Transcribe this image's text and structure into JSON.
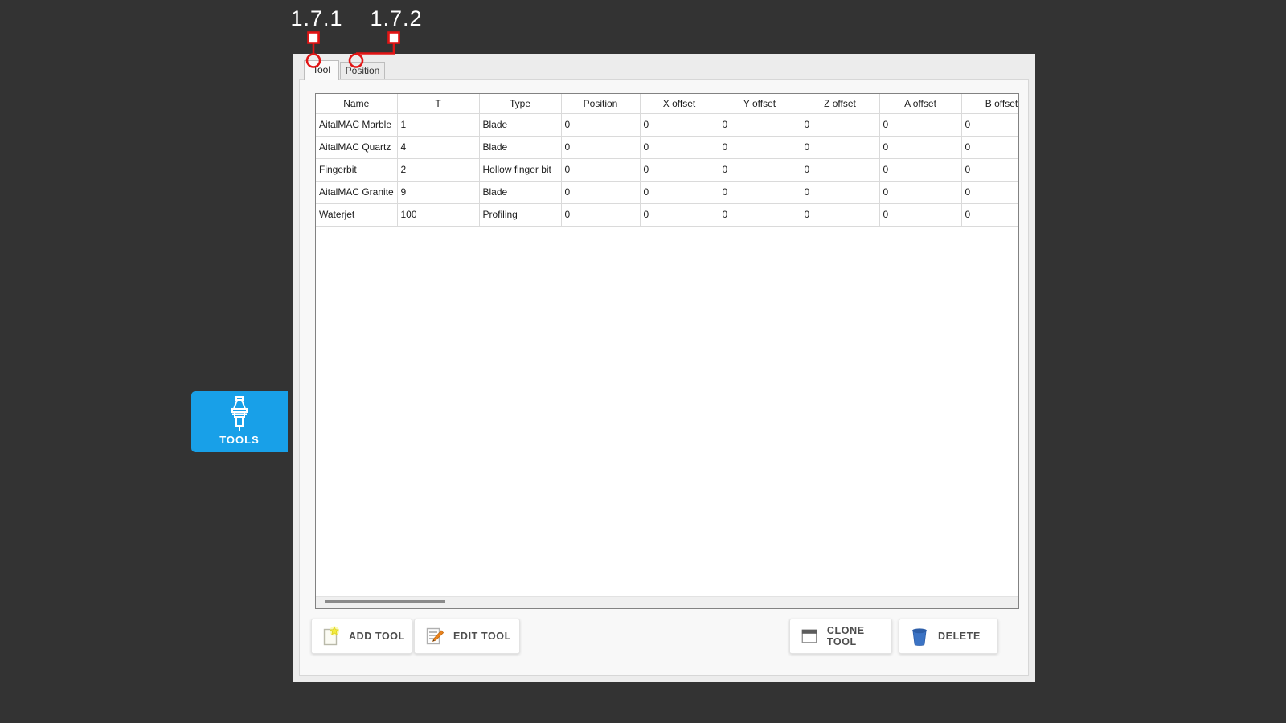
{
  "annotations": {
    "callout1": "1.7.1",
    "callout2": "1.7.2"
  },
  "tabs": [
    {
      "label": "Tool",
      "active": true
    },
    {
      "label": "Position",
      "active": false
    }
  ],
  "table": {
    "columns": [
      "Name",
      "T",
      "Type",
      "Position",
      "X offset",
      "Y offset",
      "Z offset",
      "A offset",
      "B offset"
    ],
    "rows": [
      [
        "AitalMAC Marble",
        "1",
        "Blade",
        "0",
        "0",
        "0",
        "0",
        "0",
        "0"
      ],
      [
        "AitalMAC Quartz",
        "4",
        "Blade",
        "0",
        "0",
        "0",
        "0",
        "0",
        "0"
      ],
      [
        "Fingerbit",
        "2",
        "Hollow finger bit",
        "0",
        "0",
        "0",
        "0",
        "0",
        "0"
      ],
      [
        "AitalMAC Granite",
        "9",
        "Blade",
        "0",
        "0",
        "0",
        "0",
        "0",
        "0"
      ],
      [
        "Waterjet",
        "100",
        "Profiling",
        "0",
        "0",
        "0",
        "0",
        "0",
        "0"
      ]
    ]
  },
  "actions": {
    "add": "ADD TOOL",
    "edit": "EDIT TOOL",
    "clone": "CLONE TOOL",
    "delete": "DELETE"
  },
  "sidebar": {
    "tools_label": "TOOLS"
  },
  "icons": {
    "tools": "tool-holder-icon",
    "add": "new-document-star-icon",
    "edit": "edit-document-pencil-icon",
    "clone": "window-icon",
    "delete": "trash-icon"
  },
  "colors": {
    "background": "#333333",
    "panel": "#ececec",
    "page": "#f8f8f8",
    "accent_blue": "#18a0e8",
    "annotation_red": "#e21414",
    "delete_icon_blue": "#3b73c4",
    "pencil_orange": "#e8821e",
    "star_yellow": "#f4ec3e"
  }
}
